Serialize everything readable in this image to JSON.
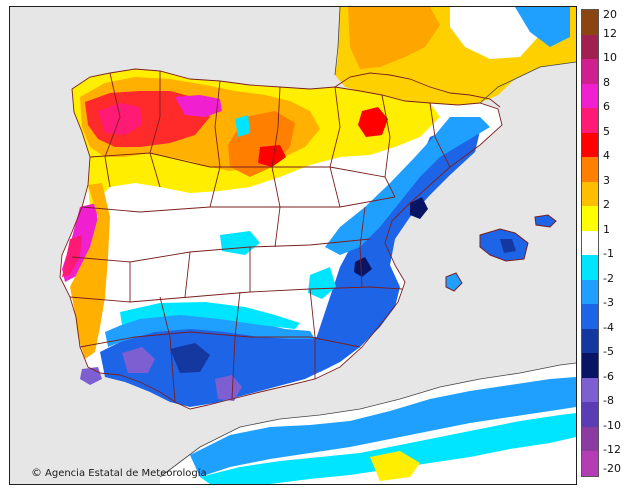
{
  "map": {
    "credit": "Agencia Estatal de Meteorología",
    "credit_symbol": "©",
    "colors": {
      "sea": "#e6e6e6",
      "outline": "#7a1f1f",
      "no_change": "#ffffff"
    }
  },
  "legend": {
    "labels": [
      "20",
      "12",
      "10",
      "8",
      "6",
      "5",
      "4",
      "3",
      "2",
      "1",
      "-1",
      "-2",
      "-3",
      "-4",
      "-5",
      "-6",
      "-8",
      "-10",
      "-12",
      "-20"
    ],
    "colors": [
      "#8b4513",
      "#a0204f",
      "#d0208f",
      "#f020d0",
      "#ff1a75",
      "#ff0000",
      "#ff7f00",
      "#ffbf00",
      "#ffff00",
      "#ffffff",
      "#00e5ff",
      "#1fa0ff",
      "#1e64e6",
      "#1437a0",
      "#0a1464",
      "#7d5fd2",
      "#5a3cb4",
      "#8c3ca0",
      "#b43cb4"
    ]
  }
}
